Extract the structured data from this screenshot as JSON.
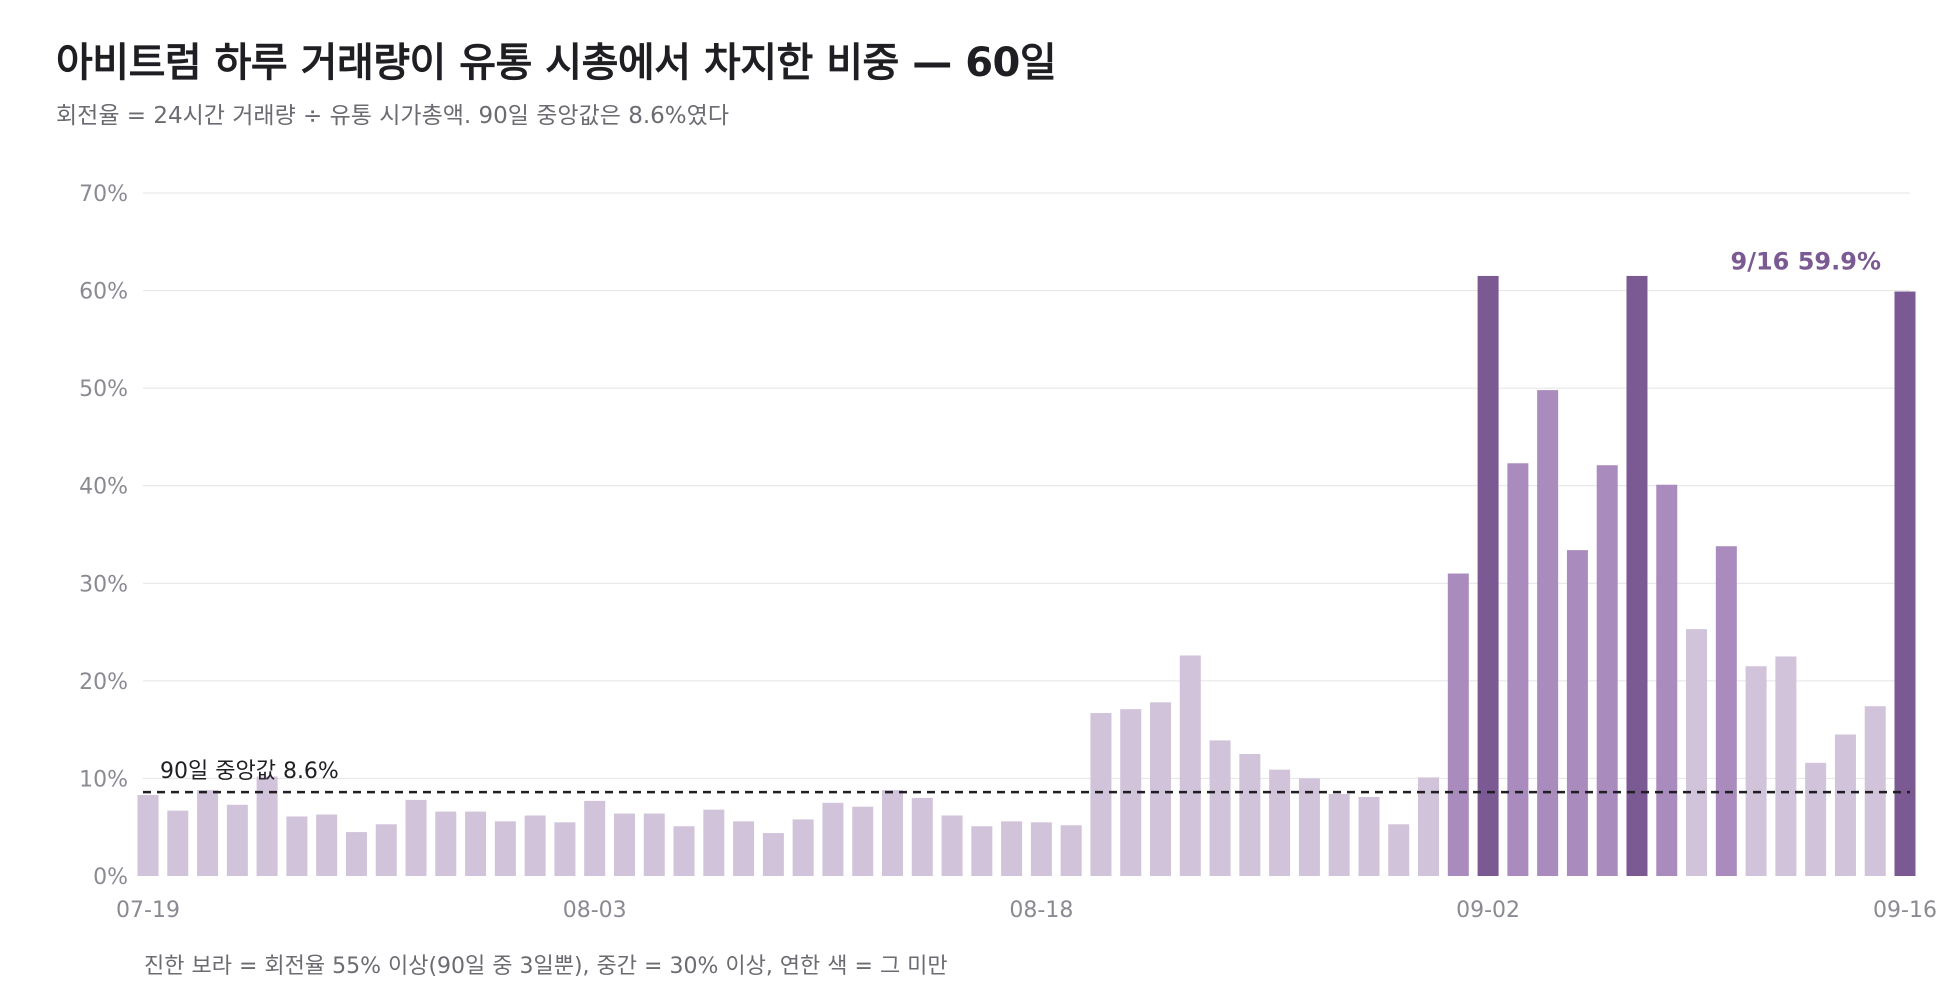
{
  "header": {
    "title": "아비트럼 하루 거래량이 유통 시총에서 차지한 비중 — 60일",
    "subtitle": "회전율 = 24시간 거래량 ÷ 유통 시가총액. 90일 중앙값은 8.6%였다"
  },
  "footnote": "진한 보라 = 회전율 55% 이상(90일 중 3일뿐), 중간 = 30% 이상, 연한 색 = 그 미만",
  "colors": {
    "high": "#7b5a93",
    "mid": "#aa8bbd",
    "low": "#d0c3da",
    "grid": "#e4e4e8",
    "median_line": "#1f1f23",
    "callout": "#7b5a93"
  },
  "chart_data": {
    "type": "bar",
    "x_ticks": [
      "07-19",
      "08-03",
      "08-18",
      "09-02",
      "09-16"
    ],
    "y_ticks": [
      "0%",
      "10%",
      "20%",
      "30%",
      "40%",
      "50%",
      "60%",
      "70%"
    ],
    "ylim": [
      0,
      70
    ],
    "grid": true,
    "thresholds": {
      "high": 55,
      "mid": 30
    },
    "median": {
      "value": 8.6,
      "label": "90일 중앙값 8.6%"
    },
    "callout": {
      "text": "9/16  59.9%"
    },
    "categories": [
      "07-19",
      "07-20",
      "07-21",
      "07-22",
      "07-23",
      "07-24",
      "07-25",
      "07-26",
      "07-27",
      "07-28",
      "07-29",
      "07-30",
      "07-31",
      "08-01",
      "08-02",
      "08-03",
      "08-04",
      "08-05",
      "08-06",
      "08-07",
      "08-08",
      "08-09",
      "08-10",
      "08-11",
      "08-12",
      "08-13",
      "08-14",
      "08-15",
      "08-16",
      "08-17",
      "08-18",
      "08-19",
      "08-20",
      "08-21",
      "08-22",
      "08-23",
      "08-24",
      "08-25",
      "08-26",
      "08-27",
      "08-28",
      "08-29",
      "08-30",
      "08-31",
      "09-01",
      "09-02",
      "09-03",
      "09-04",
      "09-05",
      "09-06",
      "09-07",
      "09-08",
      "09-09",
      "09-10",
      "09-11",
      "09-12",
      "09-13",
      "09-14",
      "09-15",
      "09-16"
    ],
    "values": [
      8.3,
      6.7,
      8.8,
      7.3,
      10.2,
      6.1,
      6.3,
      4.5,
      5.3,
      7.8,
      6.6,
      6.6,
      5.6,
      6.2,
      5.5,
      7.7,
      6.4,
      6.4,
      5.1,
      6.8,
      5.6,
      4.4,
      5.8,
      7.5,
      7.1,
      8.8,
      8.0,
      6.2,
      5.1,
      5.6,
      5.5,
      5.2,
      16.7,
      17.1,
      17.8,
      22.6,
      13.9,
      12.5,
      10.9,
      10.0,
      8.4,
      8.1,
      5.3,
      10.1,
      31.0,
      61.5,
      42.3,
      49.8,
      33.4,
      42.1,
      61.5,
      40.1,
      25.3,
      33.8,
      21.5,
      22.5,
      11.6,
      14.5,
      17.4,
      59.9
    ]
  }
}
